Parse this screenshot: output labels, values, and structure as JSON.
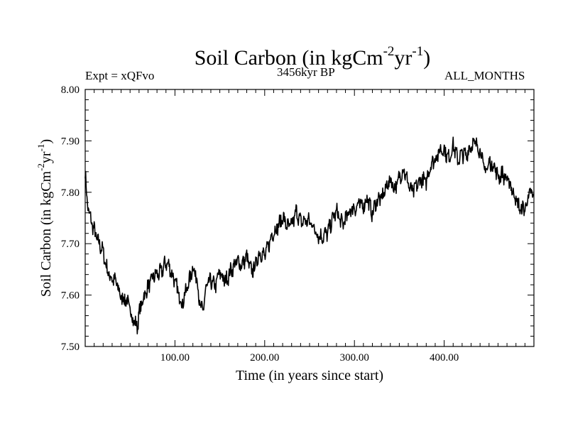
{
  "chart_data": {
    "type": "line",
    "title_main": "Soil Carbon (in kgCm",
    "title_sup1": "-2",
    "title_mid": "yr",
    "title_sup2": "-1",
    "title_end": ")",
    "subtitle_left": "Expt = xQFvo",
    "subtitle_center": "3456kyr BP",
    "subtitle_right": "ALL_MONTHS",
    "xlabel": "Time (in years since start)",
    "ylabel_main": "Soil Carbon (in kgCm",
    "ylabel_sup1": "-2",
    "ylabel_mid": "yr",
    "ylabel_sup2": "-1",
    "ylabel_end": ")",
    "xlim": [
      0,
      500
    ],
    "ylim": [
      7.5,
      8.0
    ],
    "x_ticks": [
      100,
      200,
      300,
      400
    ],
    "x_tick_labels": [
      "100.00",
      "200.00",
      "300.00",
      "400.00"
    ],
    "y_ticks": [
      7.5,
      7.6,
      7.7,
      7.8,
      7.9,
      8.0
    ],
    "y_tick_labels": [
      "7.50",
      "7.60",
      "7.70",
      "7.80",
      "7.90",
      "8.00"
    ],
    "series": [
      {
        "name": "Soil Carbon",
        "color": "#000000",
        "x": [
          0,
          2,
          5,
          10,
          15,
          20,
          25,
          30,
          35,
          40,
          45,
          50,
          55,
          58,
          60,
          63,
          66,
          70,
          75,
          80,
          85,
          90,
          95,
          100,
          104,
          108,
          112,
          116,
          120,
          125,
          128,
          131,
          135,
          140,
          145,
          150,
          155,
          160,
          165,
          170,
          175,
          180,
          185,
          190,
          195,
          200,
          205,
          210,
          215,
          220,
          225,
          230,
          235,
          240,
          245,
          250,
          255,
          260,
          265,
          270,
          275,
          280,
          285,
          290,
          295,
          300,
          305,
          310,
          315,
          320,
          325,
          330,
          335,
          340,
          345,
          350,
          355,
          360,
          365,
          370,
          375,
          380,
          385,
          390,
          395,
          400,
          405,
          410,
          415,
          420,
          425,
          430,
          435,
          440,
          445,
          450,
          455,
          460,
          465,
          470,
          475,
          480,
          485,
          490,
          495,
          500
        ],
        "values": [
          7.84,
          7.78,
          7.75,
          7.73,
          7.7,
          7.68,
          7.65,
          7.63,
          7.62,
          7.6,
          7.59,
          7.57,
          7.55,
          7.54,
          7.56,
          7.58,
          7.6,
          7.62,
          7.63,
          7.64,
          7.65,
          7.66,
          7.65,
          7.63,
          7.6,
          7.58,
          7.61,
          7.63,
          7.65,
          7.63,
          7.58,
          7.57,
          7.61,
          7.63,
          7.62,
          7.64,
          7.63,
          7.64,
          7.65,
          7.67,
          7.66,
          7.67,
          7.65,
          7.66,
          7.68,
          7.68,
          7.7,
          7.72,
          7.74,
          7.75,
          7.73,
          7.74,
          7.76,
          7.74,
          7.75,
          7.74,
          7.73,
          7.72,
          7.71,
          7.72,
          7.75,
          7.76,
          7.74,
          7.75,
          7.76,
          7.77,
          7.78,
          7.77,
          7.79,
          7.76,
          7.78,
          7.79,
          7.81,
          7.82,
          7.81,
          7.83,
          7.84,
          7.82,
          7.8,
          7.81,
          7.83,
          7.82,
          7.85,
          7.87,
          7.88,
          7.88,
          7.87,
          7.89,
          7.86,
          7.88,
          7.87,
          7.89,
          7.9,
          7.88,
          7.84,
          7.86,
          7.85,
          7.83,
          7.84,
          7.82,
          7.81,
          7.79,
          7.76,
          7.77,
          7.8,
          7.79
        ]
      }
    ]
  }
}
